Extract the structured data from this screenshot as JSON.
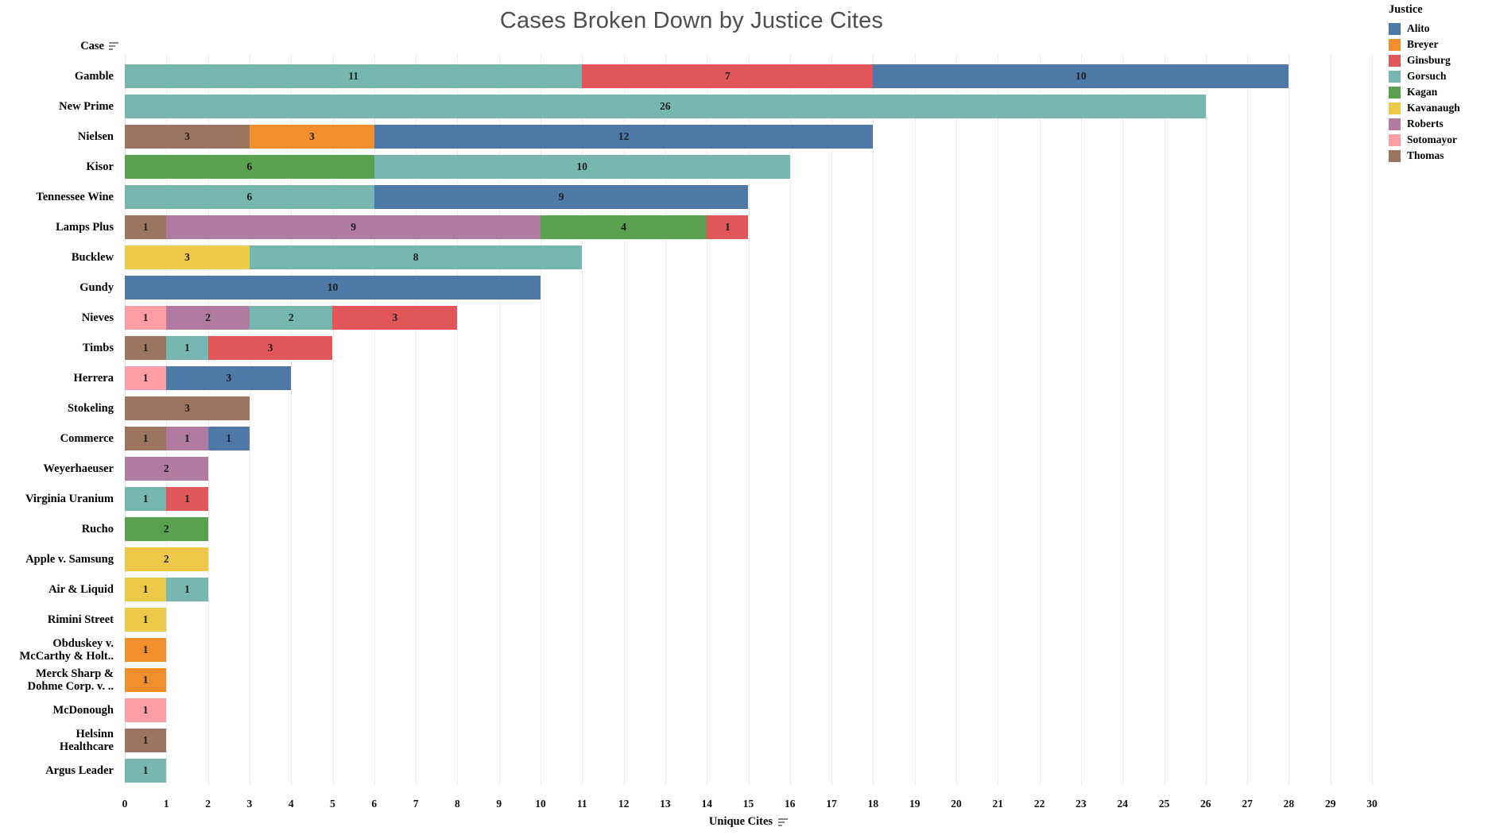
{
  "title": "Cases Broken Down by Justice Cites",
  "legend": {
    "title": "Justice",
    "entries": [
      "Alito",
      "Breyer",
      "Ginsburg",
      "Gorsuch",
      "Kagan",
      "Kavanaugh",
      "Roberts",
      "Sotomayor",
      "Thomas"
    ]
  },
  "axes": {
    "y_header": "Case",
    "x_title": "Unique Cites",
    "x_ticks": [
      0,
      1,
      2,
      3,
      4,
      5,
      6,
      7,
      8,
      9,
      10,
      11,
      12,
      13,
      14,
      15,
      16,
      17,
      18,
      19,
      20,
      21,
      22,
      23,
      24,
      25,
      26,
      27,
      28,
      29,
      30
    ]
  },
  "chart_data": {
    "type": "bar",
    "orientation": "horizontal",
    "stacked": true,
    "title": "Cases Broken Down by Justice Cites",
    "xlabel": "Unique Cites",
    "ylabel": "Case",
    "xlim": [
      0,
      30.4
    ],
    "grid": "vertical",
    "legend_position": "top-right",
    "colors": {
      "Alito": "#4e79a7",
      "Breyer": "#f28e2b",
      "Ginsburg": "#e15759",
      "Gorsuch": "#76b7b2",
      "Kagan": "#59a14f",
      "Kavanaugh": "#edc949",
      "Roberts": "#b07aa1",
      "Sotomayor": "#ff9da7",
      "Thomas": "#9c755f"
    },
    "rows": [
      {
        "case": "Gamble",
        "label": "Gamble",
        "segments": [
          {
            "justice": "Gorsuch",
            "value": 11
          },
          {
            "justice": "Ginsburg",
            "value": 7
          },
          {
            "justice": "Alito",
            "value": 10
          }
        ]
      },
      {
        "case": "New Prime",
        "label": "New Prime",
        "segments": [
          {
            "justice": "Gorsuch",
            "value": 26
          }
        ]
      },
      {
        "case": "Nielsen",
        "label": "Nielsen",
        "segments": [
          {
            "justice": "Thomas",
            "value": 3
          },
          {
            "justice": "Breyer",
            "value": 3
          },
          {
            "justice": "Alito",
            "value": 12
          }
        ]
      },
      {
        "case": "Kisor",
        "label": "Kisor",
        "segments": [
          {
            "justice": "Kagan",
            "value": 6
          },
          {
            "justice": "Gorsuch",
            "value": 10
          }
        ]
      },
      {
        "case": "Tennessee Wine",
        "label": "Tennessee Wine",
        "segments": [
          {
            "justice": "Gorsuch",
            "value": 6
          },
          {
            "justice": "Alito",
            "value": 9
          }
        ]
      },
      {
        "case": "Lamps Plus",
        "label": "Lamps Plus",
        "segments": [
          {
            "justice": "Thomas",
            "value": 1
          },
          {
            "justice": "Roberts",
            "value": 9
          },
          {
            "justice": "Kagan",
            "value": 4
          },
          {
            "justice": "Ginsburg",
            "value": 1
          }
        ]
      },
      {
        "case": "Bucklew",
        "label": "Bucklew",
        "segments": [
          {
            "justice": "Kavanaugh",
            "value": 3
          },
          {
            "justice": "Gorsuch",
            "value": 8
          }
        ]
      },
      {
        "case": "Gundy",
        "label": "Gundy",
        "segments": [
          {
            "justice": "Alito",
            "value": 10
          }
        ]
      },
      {
        "case": "Nieves",
        "label": "Nieves",
        "segments": [
          {
            "justice": "Sotomayor",
            "value": 1
          },
          {
            "justice": "Roberts",
            "value": 2
          },
          {
            "justice": "Gorsuch",
            "value": 2
          },
          {
            "justice": "Ginsburg",
            "value": 3
          }
        ]
      },
      {
        "case": "Timbs",
        "label": "Timbs",
        "segments": [
          {
            "justice": "Thomas",
            "value": 1
          },
          {
            "justice": "Gorsuch",
            "value": 1
          },
          {
            "justice": "Ginsburg",
            "value": 3
          }
        ]
      },
      {
        "case": "Herrera",
        "label": "Herrera",
        "segments": [
          {
            "justice": "Sotomayor",
            "value": 1
          },
          {
            "justice": "Alito",
            "value": 3
          }
        ]
      },
      {
        "case": "Stokeling",
        "label": "Stokeling",
        "segments": [
          {
            "justice": "Thomas",
            "value": 3
          }
        ]
      },
      {
        "case": "Commerce",
        "label": "Commerce",
        "segments": [
          {
            "justice": "Thomas",
            "value": 1
          },
          {
            "justice": "Roberts",
            "value": 1
          },
          {
            "justice": "Alito",
            "value": 1
          }
        ]
      },
      {
        "case": "Weyerhaeuser",
        "label": "Weyerhaeuser",
        "segments": [
          {
            "justice": "Roberts",
            "value": 2
          }
        ]
      },
      {
        "case": "Virginia Uranium",
        "label": "Virginia Uranium",
        "segments": [
          {
            "justice": "Gorsuch",
            "value": 1
          },
          {
            "justice": "Ginsburg",
            "value": 1
          }
        ]
      },
      {
        "case": "Rucho",
        "label": "Rucho",
        "segments": [
          {
            "justice": "Kagan",
            "value": 2
          }
        ]
      },
      {
        "case": "Apple v. Samsung",
        "label": "Apple v. Samsung",
        "segments": [
          {
            "justice": "Kavanaugh",
            "value": 2
          }
        ]
      },
      {
        "case": "Air & Liquid",
        "label": "Air & Liquid",
        "segments": [
          {
            "justice": "Kavanaugh",
            "value": 1
          },
          {
            "justice": "Gorsuch",
            "value": 1
          }
        ]
      },
      {
        "case": "Rimini Street",
        "label": "Rimini Street",
        "segments": [
          {
            "justice": "Kavanaugh",
            "value": 1
          }
        ]
      },
      {
        "case": "Obduskey v. McCarthy & Holt..",
        "label": "Obduskey v.\nMcCarthy & Holt..",
        "segments": [
          {
            "justice": "Breyer",
            "value": 1
          }
        ]
      },
      {
        "case": "Merck Sharp & Dohme Corp. v. ..",
        "label": "Merck Sharp &\nDohme Corp. v. ..",
        "segments": [
          {
            "justice": "Breyer",
            "value": 1
          }
        ]
      },
      {
        "case": "McDonough",
        "label": "McDonough",
        "segments": [
          {
            "justice": "Sotomayor",
            "value": 1
          }
        ]
      },
      {
        "case": "Helsinn Healthcare",
        "label": "Helsinn\nHealthcare",
        "segments": [
          {
            "justice": "Thomas",
            "value": 1
          }
        ]
      },
      {
        "case": "Argus Leader",
        "label": "Argus Leader",
        "segments": [
          {
            "justice": "Gorsuch",
            "value": 1
          }
        ]
      }
    ]
  }
}
